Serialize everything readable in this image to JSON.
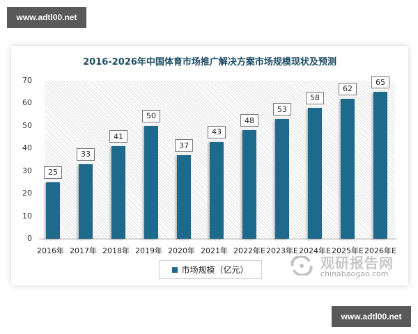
{
  "watermarks": {
    "top": "www.adtl00.net",
    "bottom": "www.adtl00.net"
  },
  "chart_data": {
    "type": "bar",
    "title": "2016-2026年中国体育市场推广解决方案市场规模现状及预测",
    "categories": [
      "2016年",
      "2017年",
      "2018年",
      "2019年",
      "2020年",
      "2021年",
      "2022年E",
      "2023年E",
      "2024年E",
      "2025年E",
      "2026年E"
    ],
    "series": [
      {
        "name": "市场规模（亿元）",
        "values": [
          25,
          33,
          41,
          50,
          37,
          43,
          48,
          53,
          58,
          62,
          65
        ],
        "color": "#1e6a8c"
      }
    ],
    "value_labels": [
      "25",
      "33",
      "41",
      "50",
      "37",
      "43",
      "48",
      "53",
      "58",
      "62",
      "65"
    ],
    "xlabel": "",
    "ylabel": "",
    "ylim": [
      0,
      70
    ],
    "yticks": [
      "0",
      "10",
      "20",
      "30",
      "40",
      "50",
      "60",
      "70"
    ],
    "grid": false,
    "legend_position": "bottom",
    "background": "diagonal-hatch"
  },
  "legend": {
    "label": "市场规模（亿元）"
  },
  "source_logo": {
    "cn": "观研报告网",
    "en": "chinabaogao.com"
  }
}
